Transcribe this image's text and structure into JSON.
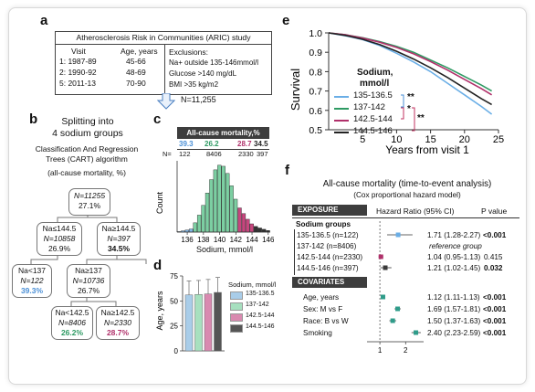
{
  "panel_a": {
    "label": "a",
    "title": "Atherosclerosis Risk in Communities (ARIC) study",
    "col_visit": "Visit",
    "col_age": "Age, years",
    "visits": [
      {
        "visit": "1: 1987-89",
        "age": "45-66"
      },
      {
        "visit": "2: 1990-92",
        "age": "48-69"
      },
      {
        "visit": "5: 2011-13",
        "age": "70-90"
      }
    ],
    "exclusions_title": "Exclusions:",
    "exclusions": [
      "Na+ outside 135-146mmol/l",
      "Glucose >140 mg/dL",
      "BMI >35 kg/m2"
    ],
    "n_total": "N=11,255"
  },
  "panel_b": {
    "label": "b",
    "title1": "Splitting into",
    "title2": "4 sodium groups",
    "method1": "Classification And Regression",
    "method2": "Trees  (CART) algorithm",
    "metric": "(all-cause mortality, %)",
    "nodes": {
      "root": {
        "n": "N=11255",
        "pct": "27.1%"
      },
      "l1": {
        "cond": "Na≤144.5",
        "n": "N=10858",
        "pct": "26.9%"
      },
      "r1": {
        "cond": "Na≥144.5",
        "n": "N=397",
        "pct": "34.5%"
      },
      "l2": {
        "cond": "Na<137",
        "n": "N=122",
        "pct": "39.3%"
      },
      "r2": {
        "cond": "Na≥137",
        "n": "N=10736",
        "pct": "26.7%"
      },
      "l3": {
        "cond": "Na<142.5",
        "n": "N=8406",
        "pct": "26.2%"
      },
      "r3": {
        "cond": "Na≥142.5",
        "n": "N=2330",
        "pct": "28.7%"
      }
    }
  },
  "panel_c": {
    "label": "c",
    "header": "All-cause mortality,%",
    "mortality": [
      "39.3",
      "26.2",
      "28.7",
      "34.5"
    ],
    "n_label": "N=",
    "counts": [
      "122",
      "8406",
      "2330",
      "397"
    ],
    "ylabel": "Count",
    "xlabel": "Sodium, mmol/l",
    "xticks": [
      "136",
      "138",
      "140",
      "142",
      "144",
      "146"
    ]
  },
  "panel_d": {
    "label": "d",
    "ylabel": "Age, years",
    "legend_title": "Sodium, mmol/l",
    "legend": [
      "135-136.5",
      "137-142",
      "142.5-144",
      "144.5-146"
    ],
    "yticks": [
      "0",
      "25",
      "50",
      "75"
    ]
  },
  "panel_e": {
    "label": "e",
    "ylabel": "Survival",
    "xlabel": "Years from visit 1",
    "legend_title1": "Sodium,",
    "legend_title2": "mmol/l",
    "legend": [
      "135-136.5",
      "137-142",
      "142.5-144",
      "144.5-146"
    ],
    "sig": [
      "**",
      "*",
      "**"
    ],
    "xticks": [
      "5",
      "10",
      "15",
      "20",
      "25"
    ],
    "yticks": [
      "0.5",
      "0.6",
      "0.7",
      "0.8",
      "0.9",
      "1.0"
    ]
  },
  "panel_f": {
    "label": "f",
    "title": "All-cause mortality (time-to-event analysis)",
    "subtitle": "(Cox proportional hazard model)",
    "col_exposure": "EXPOSURE",
    "col_hr": "Hazard Ratio (95% CI)",
    "col_p": "P value",
    "sodium_header": "Sodium groups",
    "sodium_rows": [
      {
        "label": "135-136.5 (n=122)",
        "hr": "1.71 (1.28-2.27)",
        "p": "<0.001"
      },
      {
        "label": "137-142 (n=8406)",
        "hr": "reference group",
        "p": ""
      },
      {
        "label": "142.5-144 (n=2330)",
        "hr": "1.04 (0.95-1.13)",
        "p": "0.415"
      },
      {
        "label": "144.5-146 (n=397)",
        "hr": "1.21 (1.02-1.45)",
        "p": "0.032"
      }
    ],
    "covariates_header": "COVARIATES",
    "covariate_rows": [
      {
        "label": "Age, years",
        "hr": "1.12 (1.11-1.13)",
        "p": "<0.001"
      },
      {
        "label": "Sex: M vs F",
        "hr": "1.69 (1.57-1.81)",
        "p": "<0.001"
      },
      {
        "label": "Race: B vs W",
        "hr": "1.50 (1.37-1.63)",
        "p": "<0.001"
      },
      {
        "label": "Smoking",
        "hr": "2.40 (2.23-2.59)",
        "p": "<0.001"
      }
    ],
    "xticks": [
      "1",
      "2"
    ]
  },
  "chart_data": [
    {
      "type": "bar",
      "panel": "c",
      "title": "All-cause mortality,%",
      "xlabel": "Sodium, mmol/l",
      "ylabel": "Count",
      "x": [
        135,
        135.5,
        136,
        136.5,
        137,
        137.5,
        138,
        138.5,
        139,
        139.5,
        140,
        140.5,
        141,
        141.5,
        142,
        142.5,
        143,
        143.5,
        144,
        144.5,
        145,
        145.5,
        146
      ],
      "values": [
        10,
        25,
        40,
        60,
        180,
        330,
        520,
        760,
        1020,
        1210,
        1300,
        1280,
        1140,
        900,
        640,
        470,
        360,
        250,
        160,
        110,
        80,
        55,
        30
      ],
      "groups": [
        "135-136.5",
        "137-142",
        "142.5-144",
        "144.5-146"
      ],
      "colors": [
        "#7fb6e6",
        "#7ccfa2",
        "#c7467e",
        "#333333"
      ]
    },
    {
      "type": "bar",
      "panel": "d",
      "ylabel": "Age, years",
      "categories": [
        "135-136.5",
        "137-142",
        "142.5-144",
        "144.5-146"
      ],
      "values": [
        56,
        56.5,
        57,
        58.5
      ],
      "errors": [
        14,
        14,
        14.5,
        15
      ],
      "ylim": [
        0,
        75
      ],
      "colors": [
        "#a9cde9",
        "#a7e0bf",
        "#d98ab0",
        "#555555"
      ]
    },
    {
      "type": "line",
      "panel": "e",
      "xlabel": "Years from visit 1",
      "ylabel": "Survival",
      "xlim": [
        0,
        25
      ],
      "ylim": [
        0.5,
        1.0
      ],
      "x": [
        0,
        2.5,
        5,
        7.5,
        10,
        12.5,
        15,
        17.5,
        20,
        22.5,
        24
      ],
      "series": [
        {
          "name": "135-136.5",
          "values": [
            1.0,
            0.985,
            0.965,
            0.935,
            0.895,
            0.85,
            0.8,
            0.74,
            0.68,
            0.62,
            0.58
          ],
          "color": "#6aaee6"
        },
        {
          "name": "137-142",
          "values": [
            1.0,
            0.99,
            0.975,
            0.955,
            0.93,
            0.9,
            0.86,
            0.82,
            0.775,
            0.73,
            0.7
          ],
          "color": "#2e9a63"
        },
        {
          "name": "142.5-144",
          "values": [
            1.0,
            0.99,
            0.973,
            0.952,
            0.925,
            0.892,
            0.852,
            0.808,
            0.76,
            0.712,
            0.68
          ],
          "color": "#b0306a"
        },
        {
          "name": "144.5-146",
          "values": [
            1.0,
            0.987,
            0.967,
            0.94,
            0.905,
            0.865,
            0.82,
            0.77,
            0.715,
            0.66,
            0.63
          ],
          "color": "#222222"
        }
      ]
    },
    {
      "type": "scatter",
      "panel": "f",
      "title": "All-cause mortality (time-to-event analysis)",
      "rows": [
        "135-136.5 (n=122)",
        "137-142 (n=8406)",
        "142.5-144 (n=2330)",
        "144.5-146 (n=397)",
        "Age, years",
        "Sex: M vs F",
        "Race: B vs W",
        "Smoking"
      ],
      "hr": [
        1.71,
        1.0,
        1.04,
        1.21,
        1.12,
        1.69,
        1.5,
        2.4
      ],
      "lo": [
        1.28,
        1.0,
        0.95,
        1.02,
        1.11,
        1.57,
        1.37,
        2.23
      ],
      "hi": [
        2.27,
        1.0,
        1.13,
        1.45,
        1.13,
        1.81,
        1.63,
        2.59
      ],
      "xlim": [
        0.5,
        2.7
      ]
    }
  ]
}
